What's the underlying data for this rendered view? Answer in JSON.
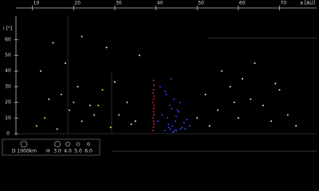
{
  "chart_data": {
    "type": "scatter",
    "x_label": "a [AU]",
    "y_label": "i [°]",
    "xlim": [
      6,
      79
    ],
    "ylim": [
      0,
      66
    ],
    "xticks": [
      10,
      20,
      30,
      40,
      50,
      60,
      70
    ],
    "yticks": [
      0,
      10,
      20,
      30,
      40,
      50,
      60
    ],
    "series": [
      {
        "color": "#e02020",
        "x": [
          39.3,
          39.4,
          39.5,
          39.4,
          39.3,
          39.5,
          39.4,
          39.4,
          39.6,
          39.2,
          39.4,
          39.5,
          39.3,
          39.4,
          39.5,
          39.4
        ],
        "values": [
          2,
          4,
          6,
          8,
          10,
          12,
          14,
          16,
          18,
          20,
          22,
          24,
          26,
          28,
          31,
          34
        ]
      },
      {
        "color": "#3344ee",
        "x": [
          42.1,
          43.5,
          44.2,
          45.0,
          46.3,
          47.1,
          43.0,
          44.7,
          41.5,
          42.8,
          44.0,
          45.5,
          46.8,
          43.3,
          44.4,
          42.5,
          45.8,
          47.5,
          41.0,
          43.8,
          44.9,
          46.0,
          42.2,
          43.7,
          45.2,
          44.1,
          40.5,
          48.2,
          43.1,
          44.6
        ],
        "values": [
          2,
          3,
          1,
          2,
          4,
          3,
          6,
          8,
          12,
          10,
          5,
          14,
          7,
          18,
          22,
          25,
          20,
          9,
          30,
          16,
          11,
          3,
          27,
          35,
          15,
          1,
          8,
          5,
          4,
          2
        ]
      },
      {
        "color": "#e8e8e8",
        "x": [
          12,
          15,
          18,
          21,
          25,
          28,
          30,
          33,
          35,
          52,
          55,
          58,
          60,
          63,
          66,
          68,
          70,
          72,
          74,
          56,
          61,
          50,
          53,
          36,
          14,
          24,
          64,
          69,
          59,
          22
        ],
        "values": [
          40,
          58,
          45,
          30,
          12,
          55,
          33,
          20,
          8,
          25,
          15,
          30,
          10,
          22,
          18,
          8,
          28,
          12,
          5,
          40,
          35,
          10,
          5,
          50,
          22,
          18,
          45,
          32,
          20,
          62
        ]
      },
      {
        "color": "#e8e060",
        "x": [
          11,
          13,
          16,
          19,
          22,
          26,
          29,
          31,
          17,
          27,
          34,
          20
        ],
        "values": [
          5,
          10,
          3,
          15,
          8,
          18,
          4,
          12,
          25,
          28,
          6,
          20
        ]
      }
    ],
    "size_legend": "D 1000km",
    "magnitude_legend": {
      "title": "H",
      "labels": [
        "3.0",
        "4.0",
        "5.0",
        "6.0"
      ]
    }
  }
}
